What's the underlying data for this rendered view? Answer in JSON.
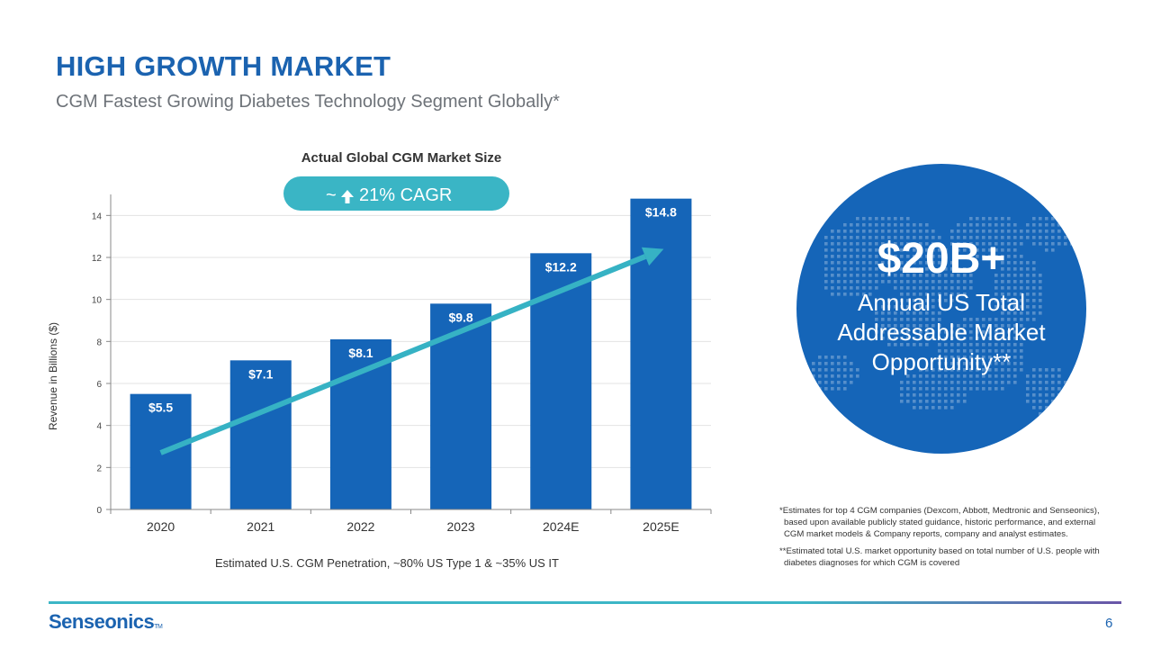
{
  "header": {
    "title": "HIGH GROWTH MARKET",
    "subtitle": "CGM Fastest Growing Diabetes Technology Segment Globally*"
  },
  "chart_data": {
    "type": "bar",
    "title": "Actual Global CGM Market Size",
    "categories": [
      "2020",
      "2021",
      "2022",
      "2023",
      "2024E",
      "2025E"
    ],
    "values": [
      5.5,
      7.1,
      8.1,
      9.8,
      12.2,
      14.8
    ],
    "data_labels": [
      "$5.5",
      "$7.1",
      "$8.1",
      "$9.8",
      "$12.2",
      "$14.8"
    ],
    "ylabel": "Revenue in Billions ($)",
    "xlabel": "Estimated U.S. CGM Penetration, ~80% US Type 1 & ~35% US IT",
    "ylim": [
      0,
      15
    ],
    "yticks": [
      0,
      2,
      4,
      6,
      8,
      10,
      12,
      14
    ],
    "grid": true,
    "bar_color": "#1565b8",
    "trend_color": "#36b2c4",
    "trend_line": {
      "start": 2.7,
      "end": 12.4
    },
    "cagr_badge": {
      "prefix": "~",
      "icon": "up-arrow-icon",
      "text": "21% CAGR"
    }
  },
  "callout": {
    "figure": "$20B+",
    "lines": [
      "Annual US Total",
      "Addressable Market",
      "Opportunity**"
    ],
    "color": "#1565b8"
  },
  "footnotes": {
    "note1": "*Estimates for top 4 CGM companies (Dexcom, Abbott, Medtronic and Senseonics), based upon available publicly stated guidance, historic performance, and external CGM market models & Company reports, company and analyst estimates.",
    "note2": "**Estimated total U.S. market opportunity based on total number of U.S. people with diabetes diagnoses for which CGM is covered"
  },
  "footer": {
    "logo": "Senseonics",
    "logo_tm": "TM",
    "page_number": "6"
  }
}
